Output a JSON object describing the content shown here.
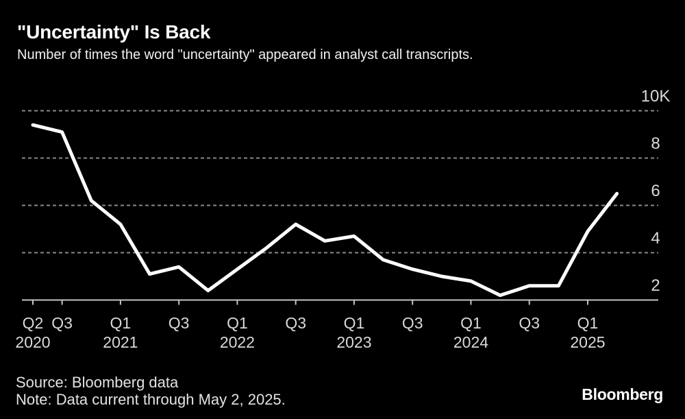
{
  "header": {
    "title": "\"Uncertainty\" Is Back",
    "subtitle": "Number of times the word \"uncertainty\" appeared in analyst call transcripts."
  },
  "footer": {
    "source": "Source: Bloomberg data",
    "note": "Note: Data current through May 2, 2025.",
    "logo": "Bloomberg"
  },
  "colors": {
    "background": "#000000",
    "line": "#ffffff",
    "grid": "#8a8a8a",
    "axis": "#c4c4c4",
    "tick_label": "#d9d9d9"
  },
  "chart_data": {
    "type": "line",
    "title": "\"Uncertainty\" Is Back",
    "subtitle": "Number of times the word \"uncertainty\" appeared in analyst call transcripts.",
    "unit": "thousands of mentions",
    "categories": [
      "Q2 2020",
      "Q3 2020",
      "Q4 2020",
      "Q1 2021",
      "Q2 2021",
      "Q3 2021",
      "Q4 2021",
      "Q1 2022",
      "Q2 2022",
      "Q3 2022",
      "Q4 2022",
      "Q1 2023",
      "Q2 2023",
      "Q3 2023",
      "Q4 2023",
      "Q1 2024",
      "Q2 2024",
      "Q3 2024",
      "Q4 2024",
      "Q1 2025",
      "Q2 2025"
    ],
    "values": [
      9.4,
      9.1,
      6.2,
      5.2,
      3.1,
      3.4,
      2.4,
      3.3,
      4.2,
      5.2,
      4.5,
      4.7,
      3.7,
      3.3,
      3.0,
      2.8,
      2.2,
      2.6,
      2.6,
      4.9,
      6.5
    ],
    "ylim": [
      2,
      10
    ],
    "yticks": [
      {
        "value": 10,
        "label": "10K"
      },
      {
        "value": 8,
        "label": "8"
      },
      {
        "value": 6,
        "label": "6"
      },
      {
        "value": 4,
        "label": "4"
      },
      {
        "value": 2,
        "label": "2"
      }
    ],
    "xticks": [
      {
        "index": 0,
        "label": "Q2"
      },
      {
        "index": 1,
        "label": "Q3"
      },
      {
        "index": 3,
        "label": "Q1"
      },
      {
        "index": 5,
        "label": "Q3"
      },
      {
        "index": 7,
        "label": "Q1"
      },
      {
        "index": 9,
        "label": "Q3"
      },
      {
        "index": 11,
        "label": "Q1"
      },
      {
        "index": 13,
        "label": "Q3"
      },
      {
        "index": 15,
        "label": "Q1"
      },
      {
        "index": 17,
        "label": "Q3"
      },
      {
        "index": 19,
        "label": "Q1"
      }
    ],
    "year_labels": [
      {
        "index": 0,
        "label": "2020"
      },
      {
        "index": 3,
        "label": "2021"
      },
      {
        "index": 7,
        "label": "2022"
      },
      {
        "index": 11,
        "label": "2023"
      },
      {
        "index": 15,
        "label": "2024"
      },
      {
        "index": 19,
        "label": "2025"
      }
    ],
    "grid": "horizontal-dotted",
    "legend": "none",
    "y_axis_side": "right"
  }
}
